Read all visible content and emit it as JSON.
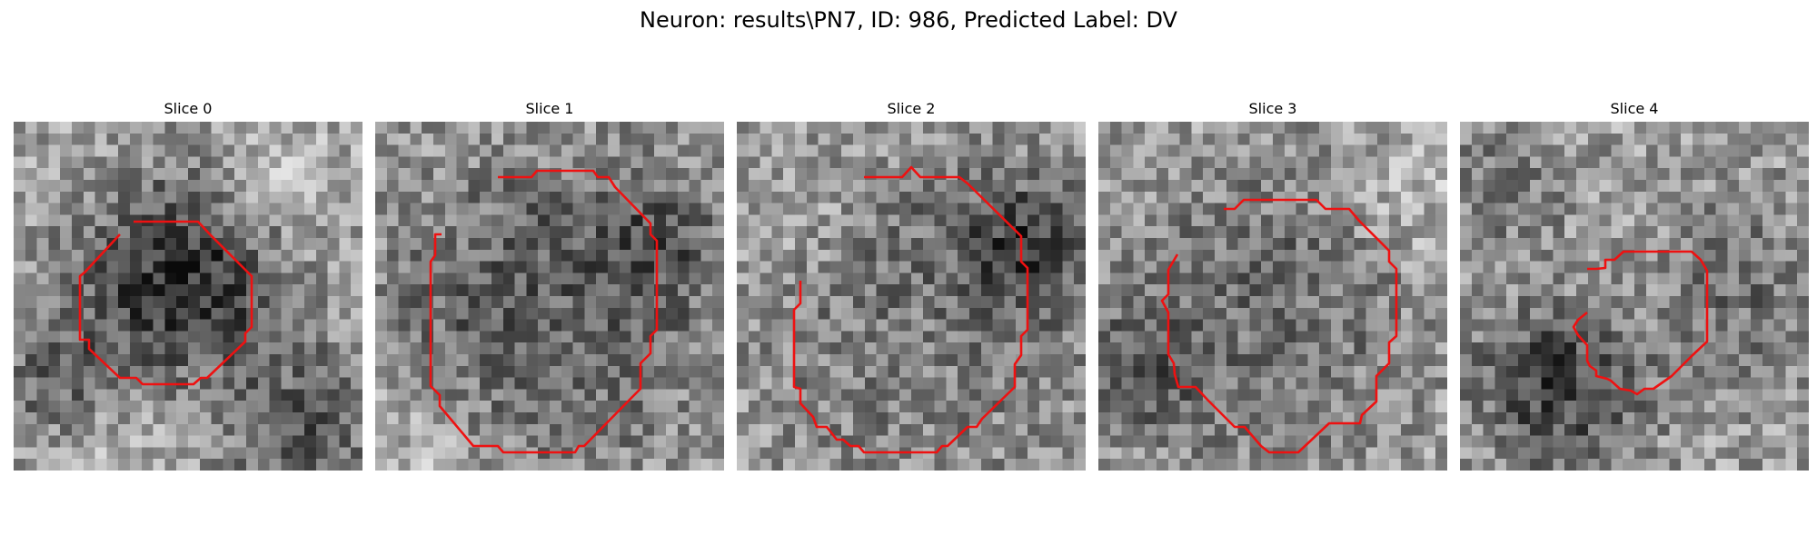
{
  "figure": {
    "title": "Neuron: results\\PN7, ID: 986, Predicted Label: DV"
  },
  "slices": [
    {
      "title": "Slice 0"
    },
    {
      "title": "Slice 1"
    },
    {
      "title": "Slice 2"
    },
    {
      "title": "Slice 3"
    },
    {
      "title": "Slice 4"
    }
  ],
  "colors": {
    "contour": "#ee1111",
    "background": "#ffffff"
  }
}
